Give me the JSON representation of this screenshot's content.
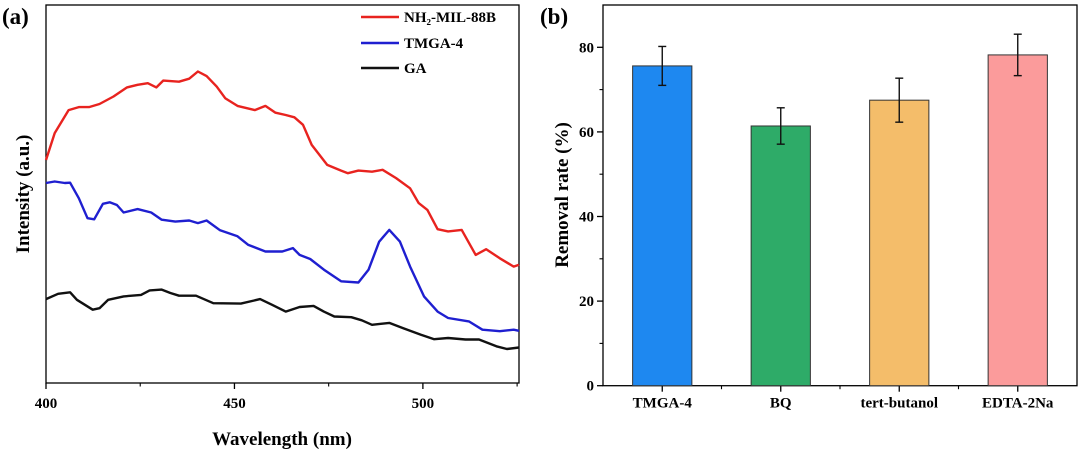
{
  "chart_data": [
    {
      "type": "line",
      "panel_label": "(a)",
      "xlabel": "Wavelength (nm)",
      "ylabel": "Intensity (a.u.)",
      "xlim": [
        400,
        525.5
      ],
      "ylim": [
        0,
        100
      ],
      "xticks": [
        400,
        450,
        500
      ],
      "xtick_labels": [
        "400",
        "450",
        "500"
      ],
      "grid": false,
      "legend_position": "top-right",
      "series": [
        {
          "name": "NH₂-MIL-88B",
          "color": "#e8231f",
          "x": [
            400,
            402.3,
            406,
            408.7,
            411.4,
            414.2,
            417.9,
            421.5,
            424.3,
            427,
            429.3,
            431.1,
            435.3,
            438,
            440.3,
            442.6,
            445.3,
            447.6,
            450.8,
            455.4,
            458.2,
            460.9,
            463.6,
            465.9,
            468.2,
            470.5,
            474.6,
            478.3,
            480.1,
            482.9,
            486.5,
            489.3,
            492.9,
            496.6,
            498.9,
            501.2,
            503.9,
            506.7,
            510.3,
            514,
            516.8,
            520.4,
            524.1,
            525.5
          ],
          "y": [
            59,
            66.1,
            72.2,
            73,
            73,
            73.8,
            75.8,
            78.2,
            78.9,
            79.3,
            78.2,
            80,
            79.7,
            80.5,
            82.4,
            81.2,
            78.4,
            75.3,
            73.3,
            72.2,
            73.3,
            71.5,
            70.9,
            70.3,
            68.3,
            63,
            57.7,
            56.2,
            55.5,
            56.2,
            55.9,
            56.4,
            54.2,
            51.5,
            47.6,
            45.8,
            40.7,
            40.1,
            40.5,
            33.9,
            35.4,
            33,
            30.8,
            31.3
          ]
        },
        {
          "name": "TMGA-4",
          "color": "#1f1fd0",
          "x": [
            400,
            402.3,
            405,
            406.4,
            408.7,
            411,
            412.8,
            415.1,
            416.9,
            418.8,
            420.6,
            424.3,
            427.9,
            430.7,
            434.3,
            438,
            440.3,
            442.6,
            446.2,
            450.8,
            453.6,
            458.2,
            462.7,
            465.5,
            467.3,
            470.1,
            473.7,
            478.3,
            482.9,
            485.6,
            488.4,
            491.1,
            493.9,
            496.6,
            500.3,
            503.9,
            506.7,
            512.2,
            515.8,
            520.4,
            524.1,
            525.5
          ],
          "y": [
            52.9,
            53.3,
            52.9,
            53,
            48.9,
            43.6,
            43.3,
            47.4,
            47.8,
            47.1,
            45.1,
            46,
            45.1,
            43.2,
            42.7,
            43,
            42.3,
            43,
            40.4,
            38.8,
            36.6,
            34.8,
            34.8,
            35.7,
            33.9,
            32.8,
            30,
            26.9,
            26.6,
            30,
            37.4,
            40.5,
            37.4,
            30.8,
            22.9,
            18.9,
            17.2,
            16.3,
            14.1,
            13.7,
            14.1,
            13.8
          ]
        },
        {
          "name": "GA",
          "color": "#111111",
          "x": [
            400,
            403.2,
            406.4,
            408.2,
            412.4,
            414.2,
            416.5,
            420.6,
            425.2,
            427.5,
            430.7,
            433,
            435.3,
            439.8,
            444.4,
            451.7,
            456.8,
            460,
            463.6,
            467.3,
            471,
            473.7,
            476.5,
            481,
            483.8,
            486.5,
            491.1,
            494.8,
            499.4,
            503,
            506.7,
            511.3,
            514.9,
            519.5,
            522.3,
            525.5
          ],
          "y": [
            22.2,
            23.6,
            24,
            22,
            19.4,
            19.8,
            22,
            22.9,
            23.3,
            24.5,
            24.7,
            23.8,
            23.1,
            23.1,
            21.1,
            21,
            22.2,
            20.7,
            18.9,
            20.1,
            20.4,
            18.9,
            17.6,
            17.4,
            16.6,
            15.4,
            15.9,
            14.5,
            12.8,
            11.6,
            11.9,
            11.5,
            11.5,
            9.7,
            9,
            9.4
          ]
        }
      ]
    },
    {
      "type": "bar",
      "panel_label": "(b)",
      "xlabel": "",
      "ylabel": "Removal rate (%)",
      "categories": [
        "TMGA-4",
        "BQ",
        "tert-butanol",
        "EDTA-2Na"
      ],
      "values": [
        75.6,
        61.4,
        67.5,
        78.2
      ],
      "errors": [
        4.6,
        4.3,
        5.2,
        4.9
      ],
      "colors": [
        "#1e88f0",
        "#2eab68",
        "#f4bd6a",
        "#fb9b9b"
      ],
      "ylim": [
        0,
        90
      ],
      "yticks": [
        0,
        20,
        40,
        60,
        80
      ],
      "ytick_labels": [
        "0",
        "20",
        "40",
        "60",
        "80"
      ],
      "grid": false
    }
  ]
}
